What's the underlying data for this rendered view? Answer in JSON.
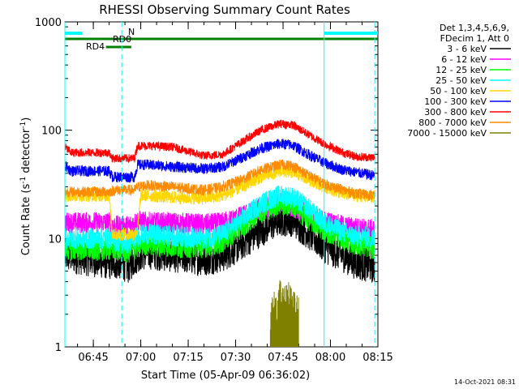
{
  "chart_data": {
    "type": "line",
    "title": "RHESSI Observing Summary Count Rates",
    "xlabel": "Start Time (05-Apr-09 06:36:02)",
    "ylabel": "Count Rate (s",
    "ylabel_sup1": "-1",
    "ylabel_mid": " detector",
    "ylabel_sup2": "-1",
    "ylabel_end": ")",
    "ylim": [
      1,
      1000
    ],
    "yscale": "log",
    "y_ticks": [
      {
        "value": 1,
        "label": "1"
      },
      {
        "value": 10,
        "label": "10"
      },
      {
        "value": 100,
        "label": "100"
      },
      {
        "value": 1000,
        "label": "1000"
      }
    ],
    "x_range_min": [
      36.0,
      135.0
    ],
    "x_ticks": [
      {
        "value": 45,
        "label": "06:45"
      },
      {
        "value": 60,
        "label": "07:00"
      },
      {
        "value": 75,
        "label": "07:15"
      },
      {
        "value": 90,
        "label": "07:30"
      },
      {
        "value": 105,
        "label": "07:45"
      },
      {
        "value": 120,
        "label": "08:00"
      },
      {
        "value": 135,
        "label": "08:15"
      }
    ],
    "legend_header": [
      "Det 1,3,4,5,6,9,",
      "FDecim 1, Att 0"
    ],
    "legend_placement": "right",
    "series": [
      {
        "name": "3 - 6 keV",
        "color": "#000000",
        "points": [
          [
            36,
            7
          ],
          [
            50,
            6
          ],
          [
            54,
            6
          ],
          [
            56,
            5.5
          ],
          [
            59,
            7
          ],
          [
            62,
            7.5
          ],
          [
            70,
            7
          ],
          [
            80,
            6.5
          ],
          [
            86,
            7
          ],
          [
            92,
            9
          ],
          [
            98,
            12
          ],
          [
            104,
            15
          ],
          [
            108,
            15
          ],
          [
            112,
            12
          ],
          [
            118,
            8.5
          ],
          [
            124,
            7
          ],
          [
            128,
            6
          ],
          [
            134,
            5.5
          ]
        ]
      },
      {
        "name": "6 - 12 keV",
        "color": "#ff00ff",
        "points": [
          [
            36,
            14
          ],
          [
            50,
            14
          ],
          [
            52,
            13
          ],
          [
            56,
            13
          ],
          [
            59,
            14.5
          ],
          [
            62,
            14
          ],
          [
            70,
            14
          ],
          [
            80,
            13.5
          ],
          [
            86,
            14
          ],
          [
            92,
            16
          ],
          [
            98,
            19
          ],
          [
            104,
            21
          ],
          [
            108,
            20
          ],
          [
            112,
            17
          ],
          [
            118,
            14.5
          ],
          [
            124,
            13
          ],
          [
            128,
            12.5
          ],
          [
            134,
            12
          ]
        ]
      },
      {
        "name": "12 - 25 keV",
        "color": "#00ff00",
        "points": [
          [
            36,
            8
          ],
          [
            50,
            8
          ],
          [
            52,
            8
          ],
          [
            56,
            7.5
          ],
          [
            59,
            8.5
          ],
          [
            62,
            9
          ],
          [
            70,
            8.5
          ],
          [
            80,
            8.5
          ],
          [
            86,
            9.5
          ],
          [
            92,
            13
          ],
          [
            98,
            18
          ],
          [
            104,
            21
          ],
          [
            108,
            20.5
          ],
          [
            112,
            16
          ],
          [
            118,
            12
          ],
          [
            124,
            10
          ],
          [
            128,
            9
          ],
          [
            134,
            8.2
          ]
        ]
      },
      {
        "name": "25 - 50 keV",
        "color": "#00ffff",
        "points": [
          [
            36,
            10
          ],
          [
            50,
            10
          ],
          [
            52,
            9.5
          ],
          [
            56,
            9
          ],
          [
            59,
            10.5
          ],
          [
            62,
            11
          ],
          [
            70,
            10.5
          ],
          [
            80,
            10
          ],
          [
            86,
            11
          ],
          [
            92,
            15
          ],
          [
            98,
            21
          ],
          [
            104,
            25
          ],
          [
            108,
            24
          ],
          [
            112,
            20
          ],
          [
            118,
            14
          ],
          [
            124,
            11.5
          ],
          [
            128,
            10.5
          ],
          [
            134,
            10
          ]
        ]
      },
      {
        "name": "50 - 100 keV",
        "color": "#ffd700",
        "points": [
          [
            36,
            25
          ],
          [
            50,
            25
          ],
          [
            51,
            11
          ],
          [
            56,
            11
          ],
          [
            58,
            11
          ],
          [
            59,
            12
          ],
          [
            60,
            25
          ],
          [
            62,
            25
          ],
          [
            70,
            24
          ],
          [
            80,
            23.5
          ],
          [
            86,
            25
          ],
          [
            92,
            30
          ],
          [
            98,
            37
          ],
          [
            104,
            42
          ],
          [
            108,
            41
          ],
          [
            112,
            37
          ],
          [
            118,
            30
          ],
          [
            124,
            26
          ],
          [
            128,
            25
          ],
          [
            134,
            24
          ]
        ]
      },
      {
        "name": "100 - 300 keV",
        "color": "#0000ff",
        "points": [
          [
            36,
            47
          ],
          [
            38,
            42
          ],
          [
            48,
            42
          ],
          [
            50,
            42
          ],
          [
            51,
            37
          ],
          [
            58,
            37
          ],
          [
            59,
            48
          ],
          [
            62,
            48
          ],
          [
            70,
            46
          ],
          [
            80,
            44
          ],
          [
            86,
            46
          ],
          [
            92,
            56
          ],
          [
            98,
            68
          ],
          [
            104,
            75
          ],
          [
            108,
            73
          ],
          [
            112,
            62
          ],
          [
            118,
            50
          ],
          [
            124,
            43
          ],
          [
            128,
            41
          ],
          [
            134,
            38
          ]
        ]
      },
      {
        "name": "300 - 800 keV",
        "color": "#ff0000",
        "points": [
          [
            36,
            70
          ],
          [
            38,
            62
          ],
          [
            48,
            62
          ],
          [
            50,
            62
          ],
          [
            51,
            55
          ],
          [
            58,
            55
          ],
          [
            59,
            72
          ],
          [
            62,
            72
          ],
          [
            70,
            70
          ],
          [
            80,
            58
          ],
          [
            86,
            60
          ],
          [
            92,
            78
          ],
          [
            98,
            100
          ],
          [
            104,
            115
          ],
          [
            108,
            112
          ],
          [
            112,
            95
          ],
          [
            118,
            75
          ],
          [
            124,
            62
          ],
          [
            128,
            57
          ],
          [
            134,
            56
          ]
        ]
      },
      {
        "name": "800 - 7000 keV",
        "color": "#ff8c00",
        "points": [
          [
            36,
            27
          ],
          [
            50,
            27
          ],
          [
            52,
            28
          ],
          [
            58,
            28
          ],
          [
            59,
            30
          ],
          [
            62,
            31
          ],
          [
            70,
            30
          ],
          [
            80,
            28
          ],
          [
            86,
            30
          ],
          [
            92,
            35
          ],
          [
            98,
            43
          ],
          [
            104,
            48
          ],
          [
            108,
            47
          ],
          [
            112,
            40
          ],
          [
            118,
            32
          ],
          [
            124,
            28
          ],
          [
            128,
            26
          ],
          [
            134,
            25
          ]
        ]
      },
      {
        "name": "7000 - 15000 keV",
        "color": "#808000",
        "points": [
          [
            101,
            1.8
          ],
          [
            102,
            2.6
          ],
          [
            103,
            2.2
          ],
          [
            104,
            3.2
          ],
          [
            105,
            2.8
          ],
          [
            106,
            3.3
          ],
          [
            107,
            3.1
          ],
          [
            108,
            2.5
          ],
          [
            109,
            2.7
          ],
          [
            110,
            2.2
          ]
        ]
      }
    ],
    "annotations": [
      {
        "text": "N",
        "color": "#00ffff"
      },
      {
        "text": "RD0",
        "color": "#008000"
      },
      {
        "text": "RD4",
        "color": "#008000"
      }
    ],
    "flags": {
      "night_color": "#00ffff",
      "saa_color": "#008000",
      "night_intervals": [
        [
          36,
          41.5
        ],
        [
          118,
          135
        ]
      ],
      "rd0_interval": [
        36,
        135
      ],
      "rd4_interval": [
        49,
        57
      ]
    },
    "vlines_solid": [
      {
        "x": 36,
        "color": "#00ffff"
      },
      {
        "x": 118,
        "color": "#00ffff"
      }
    ],
    "vlines_dashed": [
      {
        "x": 54,
        "color": "#00ffff"
      },
      {
        "x": 134,
        "color": "#00ffff"
      }
    ],
    "footer_stamp": "14-Oct-2021 08:31"
  }
}
